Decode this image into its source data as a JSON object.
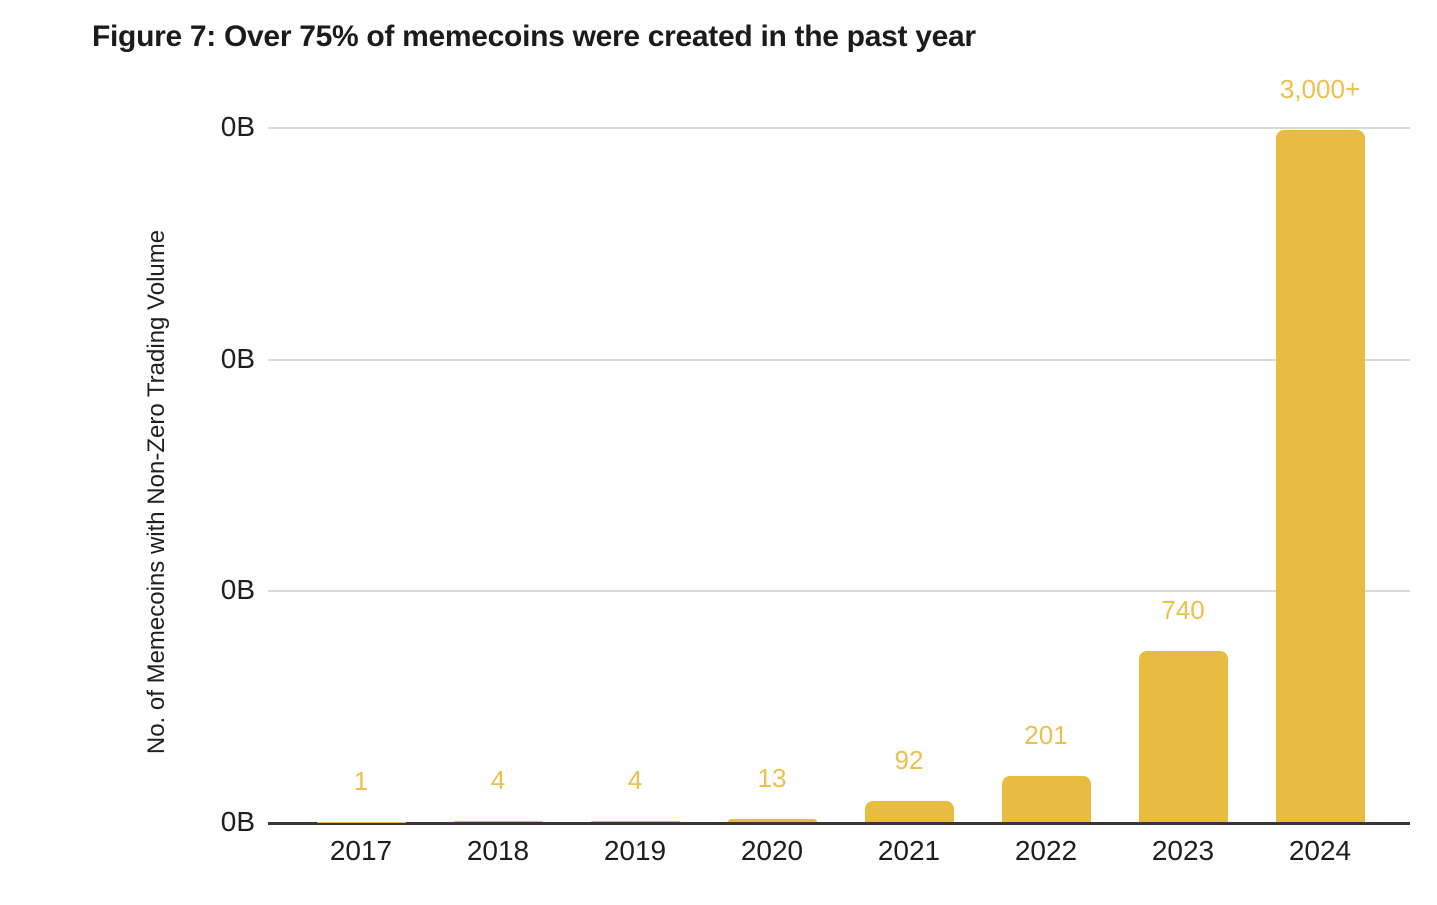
{
  "figure": {
    "caption": "Figure 7: Over 75% of memecoins were created in the past year"
  },
  "chart_data": {
    "type": "bar",
    "title": "Figure 7: Over 75% of memecoins were created in the past year",
    "xlabel": "",
    "ylabel": "No. of Memecoins with Non-Zero Trading Volume",
    "categories": [
      "2017",
      "2018",
      "2019",
      "2020",
      "2021",
      "2022",
      "2023",
      "2024"
    ],
    "values": [
      1,
      4,
      4,
      13,
      92,
      201,
      740,
      3000
    ],
    "value_labels": [
      "1",
      "4",
      "4",
      "13",
      "92",
      "201",
      "740",
      "3,000+"
    ],
    "ylim": [
      0,
      3013
    ],
    "ytick_labels": [
      "0B",
      "0B",
      "0B",
      "0B"
    ],
    "grid": "horizontal",
    "legend": "none",
    "bar_color": "#E7BC41",
    "value_label_color": "#ECC04D",
    "gridline_color": "#D9D9D9",
    "axis_line_color": "#373737"
  }
}
